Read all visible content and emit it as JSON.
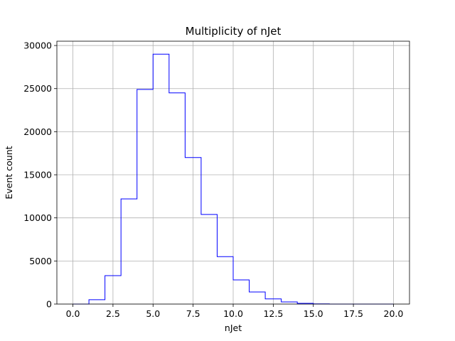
{
  "chart_data": {
    "type": "bar",
    "style": "step-histogram",
    "title": "Multiplicity of nJet",
    "xlabel": "nJet",
    "ylabel": "Event count",
    "xlim": [
      -1,
      21
    ],
    "ylim": [
      0,
      30500
    ],
    "xticks": [
      "0.0",
      "2.5",
      "5.0",
      "7.5",
      "10.0",
      "12.5",
      "15.0",
      "17.5",
      "20.0"
    ],
    "xtick_values": [
      0,
      2.5,
      5,
      7.5,
      10,
      12.5,
      15,
      17.5,
      20
    ],
    "yticks": [
      "0",
      "5000",
      "10000",
      "15000",
      "20000",
      "25000",
      "30000"
    ],
    "ytick_values": [
      0,
      5000,
      10000,
      15000,
      20000,
      25000,
      30000
    ],
    "bin_edges": [
      0,
      1,
      2,
      3,
      4,
      5,
      6,
      7,
      8,
      9,
      10,
      11,
      12,
      13,
      14,
      15,
      16,
      17,
      18,
      19,
      20
    ],
    "values": [
      0,
      500,
      3300,
      12200,
      24900,
      29000,
      24500,
      17000,
      10400,
      5500,
      2800,
      1400,
      600,
      250,
      80,
      20,
      5,
      0,
      0,
      0
    ],
    "grid": true,
    "line_color": "#0000ff",
    "grid_color": "#b0b0b0"
  }
}
